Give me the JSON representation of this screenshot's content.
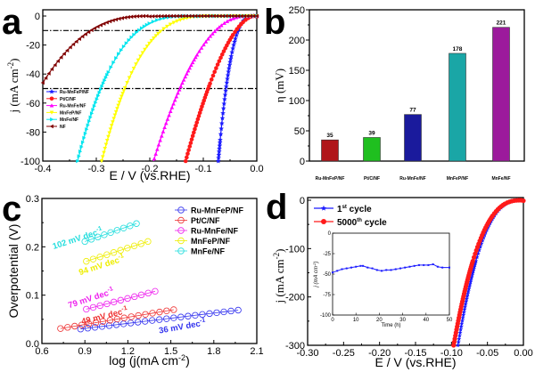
{
  "chart_data": [
    {
      "panel": "a",
      "type": "line",
      "title": "",
      "xlabel": "E / V (vs.RHE)",
      "ylabel": "j (mA cm-2)",
      "xlim": [
        -0.4,
        0.0
      ],
      "ylim": [
        -100,
        0
      ],
      "xticks": [
        "-0.4",
        "-0.3",
        "-0.2",
        "-0.1",
        "0.0"
      ],
      "yticks": [
        "0",
        "-20",
        "-40",
        "-60",
        "-80",
        "-100"
      ],
      "reference_lines": [
        -10,
        -50
      ],
      "legend": "left",
      "series": [
        {
          "name": "Ru-MnFeP/NF",
          "color": "#1a1aff",
          "marker": "star",
          "onset": -0.005,
          "e_at_10": -0.035,
          "e_at_100": -0.072
        },
        {
          "name": "Pt/C/NF",
          "color": "#ff1a1a",
          "marker": "circle",
          "onset": -0.005,
          "e_at_10": -0.039,
          "e_at_100": -0.133
        },
        {
          "name": "Ru-MnFe/NF",
          "color": "#ff00ff",
          "marker": "triangle-up",
          "onset": -0.02,
          "e_at_10": -0.077,
          "e_at_100": -0.193
        },
        {
          "name": "MnFeP/NF",
          "color": "#ffff00",
          "marker": "triangle-down",
          "onset": -0.08,
          "e_at_10": -0.178,
          "e_at_100": -0.29
        },
        {
          "name": "MnFe/NF",
          "color": "#00e5ee",
          "marker": "triangle-right",
          "onset": -0.12,
          "e_at_10": -0.221,
          "e_at_100": -0.335
        },
        {
          "name": "NF",
          "color": "#800000",
          "marker": "triangle-left",
          "onset": -0.2,
          "e_at_10": -0.31,
          "e_at_min": -0.4,
          "j_at_min": -46
        }
      ]
    },
    {
      "panel": "b",
      "type": "bar",
      "title": "",
      "xlabel": "",
      "ylabel": "η (mV)",
      "ylim": [
        0,
        250
      ],
      "yticks": [
        "0",
        "50",
        "100",
        "150",
        "200",
        "250"
      ],
      "categories": [
        "Ru-MnFeP/NF",
        "Pt/C/NF",
        "Ru-MnFe/NF",
        "MnFeP/NF",
        "MnFe/NF"
      ],
      "values": [
        35,
        39,
        77,
        178,
        221
      ],
      "colors": [
        "#b0161a",
        "#1fbf1f",
        "#1a1a9c",
        "#1aa6a6",
        "#9c1a9c"
      ]
    },
    {
      "panel": "c",
      "type": "line",
      "title": "",
      "xlabel": "log (j(mA cm-2)",
      "ylabel": "Overpotential (V)",
      "xlim": [
        0.6,
        2.1
      ],
      "ylim": [
        0.0,
        0.3
      ],
      "xticks": [
        "0.6",
        "0.9",
        "1.2",
        "1.5",
        "1.8",
        "2.1"
      ],
      "yticks": [
        "0.0",
        "0.1",
        "0.2",
        "0.3"
      ],
      "legend": "top-right",
      "series": [
        {
          "name": "Ru-MnFeP/NF",
          "color": "#3333ee",
          "x_range": [
            0.87,
            1.97
          ],
          "y_range": [
            0.03,
            0.069
          ],
          "slope_label": "36 mV dec-1"
        },
        {
          "name": "Pt/C/NF",
          "color": "#ee3333",
          "x_range": [
            0.73,
            1.52
          ],
          "y_range": [
            0.031,
            0.07
          ],
          "slope_label": "49 mV dec-1"
        },
        {
          "name": "Ru-MnFe/NF",
          "color": "#ee22ee",
          "x_range": [
            0.91,
            1.39
          ],
          "y_range": [
            0.071,
            0.108
          ],
          "slope_label": "79 mV dec-1"
        },
        {
          "name": "MnFeP/NF",
          "color": "#eeee00",
          "x_range": [
            0.91,
            1.34
          ],
          "y_range": [
            0.17,
            0.211
          ],
          "slope_label": "94 mV dec-1"
        },
        {
          "name": "MnFe/NF",
          "color": "#22dddd",
          "x_range": [
            0.9,
            1.26
          ],
          "y_range": [
            0.211,
            0.248
          ],
          "slope_label": "102 mV dec-1"
        }
      ]
    },
    {
      "panel": "d",
      "type": "line",
      "title": "",
      "xlabel": "E / V (vs.RHE)",
      "ylabel": "j (mA cm-2)",
      "xlim": [
        -0.3,
        0.0
      ],
      "ylim": [
        -300,
        0
      ],
      "xticks": [
        "-0.30",
        "-0.25",
        "-0.20",
        "-0.15",
        "-0.10",
        "-0.05",
        "0.00"
      ],
      "yticks": [
        "0",
        "-100",
        "-200",
        "-300"
      ],
      "legend": "top-left",
      "series": [
        {
          "name": "1st cycle",
          "color": "#1a1aff",
          "marker": "star",
          "e_at_300": -0.091
        },
        {
          "name": "5000th cycle",
          "color": "#ff1a1a",
          "marker": "circle",
          "e_at_300": -0.097
        }
      ],
      "inset": {
        "type": "line",
        "xlabel": "Time (h)",
        "ylabel": "j (mA cm-2)",
        "xlim": [
          0,
          50
        ],
        "ylim": [
          -100,
          0
        ],
        "xticks": [
          "0",
          "10",
          "20",
          "30",
          "40",
          "50"
        ],
        "yticks": [
          "0",
          "-25",
          "-50",
          "-75",
          "-100"
        ],
        "color": "#1a1aff",
        "x": [
          0,
          2,
          4,
          6,
          8,
          10,
          12,
          13,
          15,
          17,
          19,
          21,
          23,
          25,
          27,
          29,
          31,
          33,
          35,
          37,
          39,
          41,
          43,
          45,
          47,
          50
        ],
        "y": [
          -48,
          -46,
          -44,
          -43,
          -42,
          -41,
          -40,
          -40,
          -42,
          -43,
          -45,
          -46,
          -45,
          -45,
          -44,
          -43,
          -42,
          -41,
          -40,
          -39,
          -39,
          -39,
          -38,
          -41,
          -42,
          -42
        ]
      }
    }
  ],
  "panels": {
    "a": {
      "letter": "a"
    },
    "b": {
      "letter": "b"
    },
    "c": {
      "letter": "c"
    },
    "d": {
      "letter": "d"
    }
  },
  "labels": {
    "c_legend": [
      "Ru-MnFeP/NF",
      "Pt/C/NF",
      "Ru-MnFe/NF",
      "MnFeP/NF",
      "MnFe/NF"
    ],
    "d_legend_1_main": "1",
    "d_legend_1_sup": "st",
    "d_legend_1_rest": " cycle",
    "d_legend_2_main": "5000",
    "d_legend_2_sup": "th",
    "d_legend_2_rest": " cycle"
  }
}
